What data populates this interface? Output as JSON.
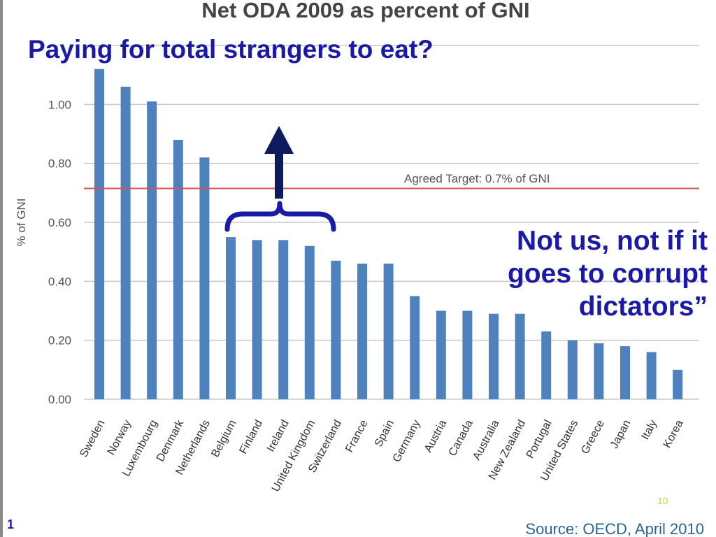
{
  "slide": {
    "title": "Paying for total strangers to eat?",
    "annotation_lines": [
      "Not us, not if it",
      "goes to corrupt",
      "dictators”"
    ],
    "slide_number": "10",
    "page_marker": "1"
  },
  "chart_data": {
    "type": "bar",
    "title": "Net ODA 2009 as percent of GNI",
    "ylabel": "% of GNI",
    "xlabel": "",
    "ylim": [
      0,
      1.2
    ],
    "yticks": [
      "0.00",
      "0.20",
      "0.40",
      "0.60",
      "0.80",
      "1.00"
    ],
    "grid": true,
    "bar_color": "#4f81bd",
    "categories": [
      "Sweden",
      "Norway",
      "Luxembourg",
      "Denmark",
      "Netherlands",
      "Belgium",
      "Finland",
      "Ireland",
      "United Kingdom",
      "Switzerland",
      "France",
      "Spain",
      "Germany",
      "Austria",
      "Canada",
      "Australia",
      "New Zealand",
      "Portugal",
      "United States",
      "Greece",
      "Japan",
      "Italy",
      "Korea"
    ],
    "values": [
      1.12,
      1.06,
      1.01,
      0.88,
      0.82,
      0.55,
      0.54,
      0.54,
      0.52,
      0.47,
      0.46,
      0.46,
      0.35,
      0.3,
      0.3,
      0.29,
      0.29,
      0.23,
      0.2,
      0.19,
      0.18,
      0.16,
      0.1
    ],
    "target": {
      "value": 0.715,
      "label": "Agreed Target: 0.7% of GNI",
      "color": "#d9534f"
    },
    "source": "Source: OECD, April 2010"
  },
  "colors": {
    "accent": "#1a1aa6",
    "arrow": "#0d1b5c",
    "bracket": "#1a1aa6"
  }
}
